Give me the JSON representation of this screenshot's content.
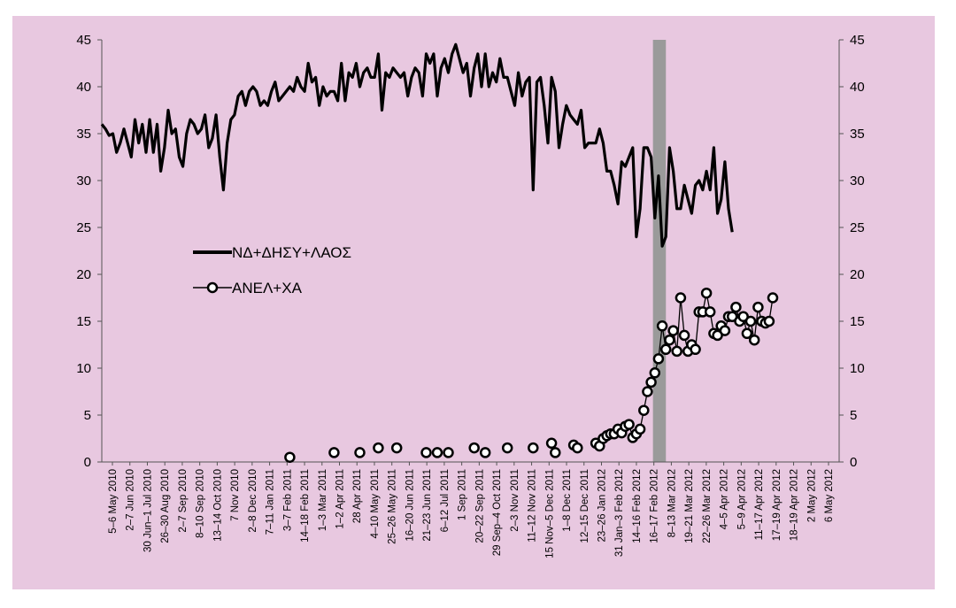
{
  "colors": {
    "plot_background": "#e8c8e0",
    "line": "#000000",
    "marker_fill": "#ffffff",
    "shaded_band": "#9a9a9a"
  },
  "chart_data": {
    "type": "line",
    "title": "",
    "xlabel": "",
    "ylabel": "",
    "ylim": [
      0,
      45
    ],
    "y_ticks": [
      "0",
      "5",
      "10",
      "15",
      "20",
      "25",
      "30",
      "35",
      "40",
      "45"
    ],
    "y2_ticks": [
      "0",
      "5",
      "10",
      "15",
      "20",
      "25",
      "30",
      "35",
      "40",
      "45"
    ],
    "grid": false,
    "legend_position": "left-middle",
    "x_tick_labels": [
      "5–6 May 2010",
      "2–7 Jun 2010",
      "30 Jun–1 Jul 2010",
      "26–30 Aug 2010",
      "2–7 Sep 2010",
      "8–10 Sep 2010",
      "13–14 Oct 2010",
      "7 Nov 2010",
      "2–8 Dec 2010",
      "7–11 Jan 2011",
      "3–7 Feb 2011",
      "14–18 Feb 2011",
      "1–3 Mar 2011",
      "1–2 Apr 2011",
      "28 Apr 2011",
      "4–10 May 2011",
      "25–26 May 2011",
      "16–20 Jun 2011",
      "21–23 Jun 2011",
      "6–12 Jul 2011",
      "1 Sep 2011",
      "20–22 Sep 2011",
      "29 Sep–4 Oct 2011",
      "2–3 Nov 2011",
      "11–12 Nov 2011",
      "15 Nov–5 Dec 2011",
      "1–8 Dec 2011",
      "12–15 Dec 2011",
      "23–26 Jan 2012",
      "31 Jan–3 Feb 2012",
      "14–16 Feb 2012",
      "16–17 Feb 2012",
      "8–13 Mar 2012",
      "19–21 Mar 2012",
      "22–26 Mar 2012",
      "4–5 Apr 2012",
      "5–9 Apr 2012",
      "11–17 Apr 2012",
      "17–19 Apr 2012",
      "18–19 Apr 2012",
      "2 May 2012",
      "6 May 2012"
    ],
    "x_range": [
      0,
      200
    ],
    "shaded_band": [
      149.5,
      153
    ],
    "series": [
      {
        "name": "ΝΔ+ΔΗΣΥ+ΛΑΟΣ",
        "marker": "none",
        "points": [
          [
            0,
            36
          ],
          [
            1,
            35.5
          ],
          [
            2,
            34.8
          ],
          [
            3,
            35
          ],
          [
            4,
            33
          ],
          [
            5,
            34
          ],
          [
            6,
            35.5
          ],
          [
            7,
            34
          ],
          [
            8,
            32.5
          ],
          [
            9,
            36.5
          ],
          [
            10,
            34
          ],
          [
            11,
            36
          ],
          [
            12,
            33
          ],
          [
            13,
            36.5
          ],
          [
            14,
            33
          ],
          [
            15,
            36
          ],
          [
            16,
            31
          ],
          [
            17,
            33.5
          ],
          [
            18,
            37.5
          ],
          [
            19,
            35
          ],
          [
            20,
            35.5
          ],
          [
            21,
            32.5
          ],
          [
            22,
            31.5
          ],
          [
            23,
            35
          ],
          [
            24,
            36.5
          ],
          [
            25,
            36
          ],
          [
            26,
            35
          ],
          [
            27,
            35.5
          ],
          [
            28,
            37
          ],
          [
            29,
            33.5
          ],
          [
            30,
            34.5
          ],
          [
            31,
            37
          ],
          [
            32,
            32.5
          ],
          [
            33,
            29
          ],
          [
            34,
            34
          ],
          [
            35,
            36.5
          ],
          [
            36,
            37
          ],
          [
            37,
            39
          ],
          [
            38,
            39.5
          ],
          [
            39,
            38
          ],
          [
            40,
            39.5
          ],
          [
            41,
            40
          ],
          [
            42,
            39.5
          ],
          [
            43,
            38
          ],
          [
            44,
            38.5
          ],
          [
            45,
            38
          ],
          [
            46,
            39.5
          ],
          [
            47,
            40.5
          ],
          [
            48,
            38.5
          ],
          [
            49,
            39
          ],
          [
            50,
            39.5
          ],
          [
            51,
            40
          ],
          [
            52,
            39.5
          ],
          [
            53,
            41
          ],
          [
            54,
            40
          ],
          [
            55,
            39.5
          ],
          [
            56,
            42.5
          ],
          [
            57,
            40.5
          ],
          [
            58,
            41
          ],
          [
            59,
            38
          ],
          [
            60,
            40
          ],
          [
            61,
            39
          ],
          [
            62,
            39.5
          ],
          [
            63,
            39.5
          ],
          [
            64,
            38.5
          ],
          [
            65,
            42.5
          ],
          [
            66,
            38.5
          ],
          [
            67,
            41.5
          ],
          [
            68,
            41
          ],
          [
            69,
            42.5
          ],
          [
            70,
            40
          ],
          [
            71,
            41.5
          ],
          [
            72,
            42
          ],
          [
            73,
            41
          ],
          [
            74,
            41
          ],
          [
            75,
            43.5
          ],
          [
            76,
            37.5
          ],
          [
            77,
            41.5
          ],
          [
            78,
            41
          ],
          [
            79,
            42
          ],
          [
            80,
            41.5
          ],
          [
            81,
            41
          ],
          [
            82,
            41.5
          ],
          [
            83,
            39
          ],
          [
            84,
            41
          ],
          [
            85,
            42
          ],
          [
            86,
            41.5
          ],
          [
            87,
            39
          ],
          [
            88,
            43.5
          ],
          [
            89,
            42.5
          ],
          [
            90,
            43.5
          ],
          [
            91,
            39
          ],
          [
            92,
            42
          ],
          [
            93,
            43
          ],
          [
            94,
            41.5
          ],
          [
            95,
            43.5
          ],
          [
            96,
            44.5
          ],
          [
            97,
            43
          ],
          [
            98,
            41.5
          ],
          [
            99,
            42.5
          ],
          [
            100,
            39
          ],
          [
            101,
            42
          ],
          [
            102,
            43.5
          ],
          [
            103,
            40
          ],
          [
            104,
            43.5
          ],
          [
            105,
            40
          ],
          [
            106,
            41.5
          ],
          [
            107,
            40.5
          ],
          [
            108,
            43
          ],
          [
            109,
            41
          ],
          [
            110,
            41
          ],
          [
            111,
            39.5
          ],
          [
            112,
            38
          ],
          [
            113,
            41.5
          ],
          [
            114,
            39
          ],
          [
            115,
            40.5
          ],
          [
            116,
            41
          ],
          [
            117,
            29
          ],
          [
            118,
            40.5
          ],
          [
            119,
            41
          ],
          [
            120,
            38
          ],
          [
            121,
            34
          ],
          [
            122,
            41
          ],
          [
            123,
            39.5
          ],
          [
            124,
            33.5
          ],
          [
            125,
            36
          ],
          [
            126,
            38
          ],
          [
            127,
            37
          ],
          [
            128,
            36.5
          ],
          [
            129,
            36
          ],
          [
            130,
            37.5
          ],
          [
            131,
            33.5
          ],
          [
            132,
            34
          ],
          [
            133,
            34
          ],
          [
            134,
            34
          ],
          [
            135,
            35.5
          ],
          [
            136,
            34
          ],
          [
            137,
            31
          ],
          [
            138,
            31
          ],
          [
            139,
            29.5
          ],
          [
            140,
            27.5
          ],
          [
            141,
            32
          ],
          [
            142,
            31.5
          ],
          [
            143,
            32.5
          ],
          [
            144,
            33.5
          ],
          [
            145,
            24
          ],
          [
            146,
            27
          ],
          [
            147,
            33.5
          ],
          [
            148,
            33.5
          ],
          [
            149,
            32.5
          ],
          [
            150,
            26
          ],
          [
            151,
            30.5
          ],
          [
            152,
            23
          ],
          [
            153,
            24
          ],
          [
            154,
            33.5
          ],
          [
            155,
            31
          ],
          [
            156,
            27
          ],
          [
            157,
            27
          ],
          [
            158,
            29.5
          ],
          [
            159,
            28
          ],
          [
            160,
            26.5
          ],
          [
            161,
            29.5
          ],
          [
            162,
            30
          ],
          [
            163,
            29
          ],
          [
            164,
            31
          ],
          [
            165,
            29
          ],
          [
            166,
            33.5
          ],
          [
            167,
            26.5
          ],
          [
            168,
            28
          ],
          [
            169,
            32
          ],
          [
            170,
            27
          ],
          [
            171,
            24.5
          ]
        ]
      },
      {
        "name": "ΑΝΕΛ+ΧΑ",
        "marker": "circle",
        "points": [
          [
            51,
            0.5
          ],
          [
            63,
            1
          ],
          [
            70,
            1
          ],
          [
            75,
            1.5
          ],
          [
            80,
            1.5
          ],
          [
            88,
            1
          ],
          [
            91,
            1
          ],
          [
            94,
            1
          ],
          [
            101,
            1.5
          ],
          [
            104,
            1
          ],
          [
            110,
            1.5
          ],
          [
            117,
            1.5
          ],
          [
            122,
            2
          ],
          [
            123,
            1
          ],
          [
            128,
            1.8
          ],
          [
            129,
            1.5
          ],
          [
            134,
            2
          ],
          [
            135,
            1.7
          ],
          [
            136,
            2.5
          ],
          [
            137,
            2.8
          ],
          [
            138,
            3
          ],
          [
            139,
            3
          ],
          [
            140,
            3.5
          ],
          [
            141,
            3.1
          ],
          [
            142,
            3.8
          ],
          [
            143,
            4
          ],
          [
            144,
            2.6
          ],
          [
            145,
            3
          ],
          [
            146,
            3.5
          ],
          [
            147,
            5.5
          ],
          [
            148,
            7.5
          ],
          [
            149,
            8.5
          ],
          [
            150,
            9.5
          ],
          [
            151,
            11
          ],
          [
            152,
            14.5
          ],
          [
            153,
            12
          ],
          [
            154,
            13
          ],
          [
            155,
            14
          ],
          [
            156,
            11.8
          ],
          [
            157,
            17.5
          ],
          [
            158,
            13.5
          ],
          [
            159,
            11.8
          ],
          [
            160,
            12.5
          ],
          [
            161,
            12
          ],
          [
            162,
            16
          ],
          [
            163,
            16
          ],
          [
            164,
            18
          ],
          [
            165,
            16
          ],
          [
            166,
            13.7
          ],
          [
            167,
            13.5
          ],
          [
            168,
            14.5
          ],
          [
            169,
            14
          ],
          [
            170,
            15.5
          ],
          [
            171,
            15.5
          ],
          [
            172,
            16.5
          ],
          [
            173,
            15
          ],
          [
            174,
            15.5
          ],
          [
            175,
            13.7
          ],
          [
            176,
            15
          ],
          [
            177,
            13
          ],
          [
            178,
            16.5
          ],
          [
            179,
            15
          ],
          [
            180,
            14.8
          ],
          [
            181,
            15
          ],
          [
            182,
            17.5
          ]
        ]
      }
    ]
  }
}
